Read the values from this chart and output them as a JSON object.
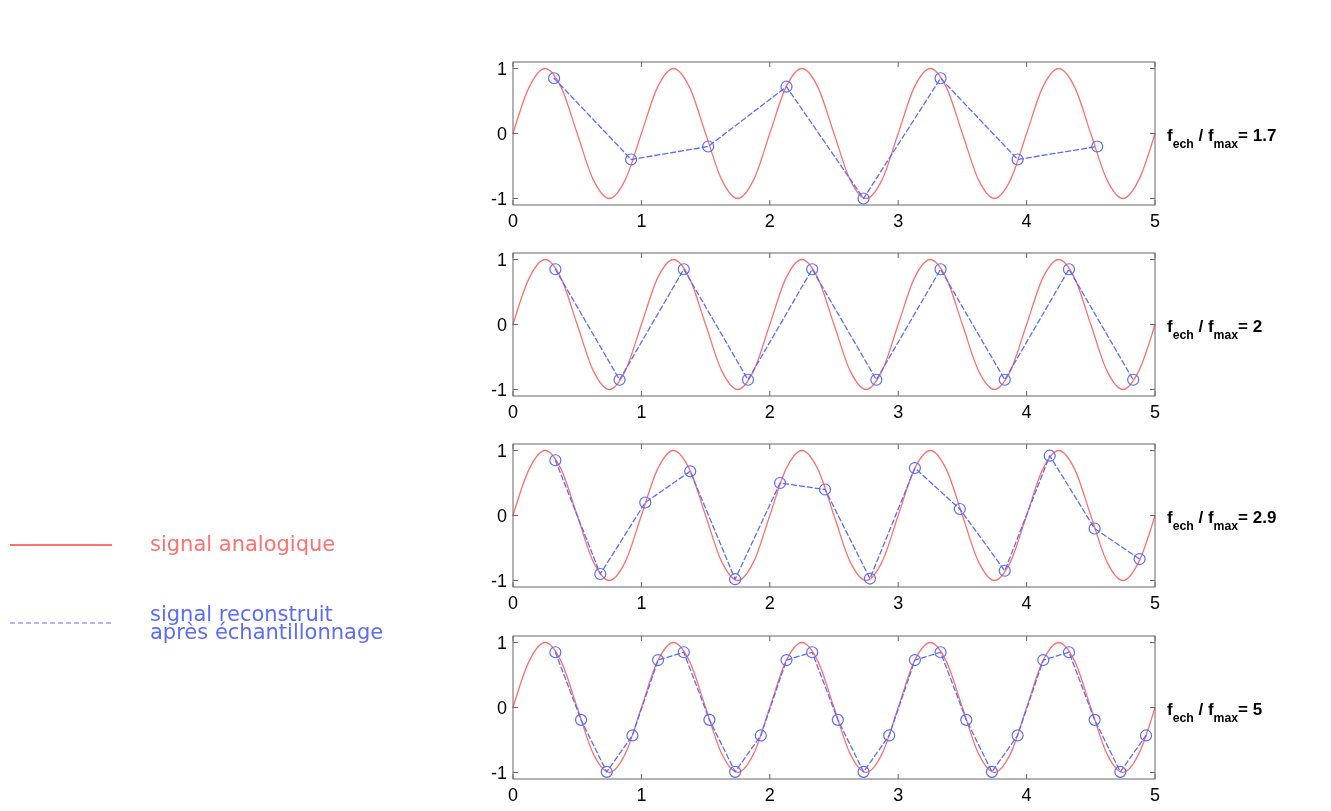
{
  "chart_data": [
    {
      "type": "line",
      "legend": "left",
      "xlim": [
        0,
        5
      ],
      "ylim": [
        -1.1,
        1.1
      ],
      "xticks": [
        0,
        1,
        2,
        3,
        4,
        5
      ],
      "yticks": [
        -1,
        0,
        1
      ],
      "annotations": [
        "f$_{ech}$ / f$_{max}$= 1.7"
      ],
      "series": [
        {
          "name": "signal analogique",
          "color": "#ff7070",
          "line_style": "solid",
          "marker": "none",
          "x": [
            0,
            0.125,
            0.25,
            0.375,
            0.5,
            0.625,
            0.75,
            0.875,
            1,
            1.125,
            1.25,
            1.375,
            1.5,
            1.625,
            1.75,
            1.875,
            2,
            2.125,
            2.25,
            2.375,
            2.5,
            2.625,
            2.75,
            2.875,
            3,
            3.125,
            3.25,
            3.375,
            3.5,
            3.625,
            3.75,
            3.875,
            4,
            4.125,
            4.25,
            4.375,
            4.5,
            4.625,
            4.75,
            4.875,
            5
          ],
          "values": [
            0,
            0.71,
            1,
            0.71,
            0,
            -0.71,
            -1,
            -0.71,
            0,
            0.71,
            1,
            0.71,
            0,
            -0.71,
            -1,
            -0.71,
            0,
            0.71,
            1,
            0.71,
            0,
            -0.71,
            -1,
            -0.71,
            0,
            0.71,
            1,
            0.71,
            0,
            -0.71,
            -1,
            -0.71,
            0,
            0.71,
            1,
            0.71,
            0,
            -0.71,
            -1,
            -0.71,
            0
          ]
        },
        {
          "name": "signal reconstruit après échantillonnage",
          "color": "#5a6cff",
          "line_style": "dashed",
          "marker": "circle",
          "x": [
            0.32,
            0.92,
            1.52,
            2.13,
            2.73,
            3.33,
            3.93,
            4.55
          ],
          "values": [
            0.85,
            -0.4,
            -0.2,
            0.72,
            -1,
            0.85,
            -0.4,
            -0.2
          ]
        }
      ]
    },
    {
      "type": "line",
      "xlim": [
        0,
        5
      ],
      "ylim": [
        -1.1,
        1.1
      ],
      "xticks": [
        0,
        1,
        2,
        3,
        4,
        5
      ],
      "yticks": [
        -1,
        0,
        1
      ],
      "annotations": [
        "f$_{ech}$ / f$_{max}$= 2"
      ],
      "series": [
        {
          "color": "#ff7070",
          "line_style": "solid",
          "marker": "none",
          "x": [
            0,
            0.125,
            0.25,
            0.375,
            0.5,
            0.625,
            0.75,
            0.875,
            1,
            1.125,
            1.25,
            1.375,
            1.5,
            1.625,
            1.75,
            1.875,
            2,
            2.125,
            2.25,
            2.375,
            2.5,
            2.625,
            2.75,
            2.875,
            3,
            3.125,
            3.25,
            3.375,
            3.5,
            3.625,
            3.75,
            3.875,
            4,
            4.125,
            4.25,
            4.375,
            4.5,
            4.625,
            4.75,
            4.875,
            5
          ],
          "values": [
            0,
            0.71,
            1,
            0.71,
            0,
            -0.71,
            -1,
            -0.71,
            0,
            0.71,
            1,
            0.71,
            0,
            -0.71,
            -1,
            -0.71,
            0,
            0.71,
            1,
            0.71,
            0,
            -0.71,
            -1,
            -0.71,
            0,
            0.71,
            1,
            0.71,
            0,
            -0.71,
            -1,
            -0.71,
            0,
            0.71,
            1,
            0.71,
            0,
            -0.71,
            -1,
            -0.71,
            0
          ]
        },
        {
          "color": "#5a6cff",
          "line_style": "dashed",
          "marker": "circle",
          "x": [
            0.33,
            0.83,
            1.33,
            1.83,
            2.33,
            2.83,
            3.33,
            3.83,
            4.33,
            4.83
          ],
          "values": [
            0.85,
            -0.85,
            0.85,
            -0.85,
            0.85,
            -0.85,
            0.85,
            -0.85,
            0.85,
            -0.85
          ]
        }
      ]
    },
    {
      "type": "line",
      "xlim": [
        0,
        5
      ],
      "ylim": [
        -1.1,
        1.1
      ],
      "xticks": [
        0,
        1,
        2,
        3,
        4,
        5
      ],
      "yticks": [
        -1,
        0,
        1
      ],
      "annotations": [
        "f$_{ech}$ / f$_{max}$= 2.9"
      ],
      "series": [
        {
          "color": "#ff7070",
          "line_style": "solid",
          "marker": "none",
          "x": [
            0,
            0.125,
            0.25,
            0.375,
            0.5,
            0.625,
            0.75,
            0.875,
            1,
            1.125,
            1.25,
            1.375,
            1.5,
            1.625,
            1.75,
            1.875,
            2,
            2.125,
            2.25,
            2.375,
            2.5,
            2.625,
            2.75,
            2.875,
            3,
            3.125,
            3.25,
            3.375,
            3.5,
            3.625,
            3.75,
            3.875,
            4,
            4.125,
            4.25,
            4.375,
            4.5,
            4.625,
            4.75,
            4.875,
            5
          ],
          "values": [
            0,
            0.71,
            1,
            0.71,
            0,
            -0.71,
            -1,
            -0.71,
            0,
            0.71,
            1,
            0.71,
            0,
            -0.71,
            -1,
            -0.71,
            0,
            0.71,
            1,
            0.71,
            0,
            -0.71,
            -1,
            -0.71,
            0,
            0.71,
            1,
            0.71,
            0,
            -0.71,
            -1,
            -0.71,
            0,
            0.71,
            1,
            0.71,
            0,
            -0.71,
            -1,
            -0.71,
            0
          ]
        },
        {
          "color": "#5a6cff",
          "line_style": "dashed",
          "marker": "circle",
          "x": [
            0.33,
            0.68,
            1.03,
            1.38,
            1.73,
            2.08,
            2.43,
            2.78,
            3.13,
            3.48,
            3.83,
            4.18,
            4.53,
            4.88
          ],
          "values": [
            0.85,
            -0.9,
            0.2,
            0.68,
            -0.98,
            0.5,
            0.4,
            -0.97,
            0.73,
            0.1,
            -0.85,
            0.92,
            -0.2,
            -0.67
          ]
        }
      ]
    },
    {
      "type": "line",
      "xlim": [
        0,
        5
      ],
      "ylim": [
        -1.1,
        1.1
      ],
      "xticks": [
        0,
        1,
        2,
        3,
        4,
        5
      ],
      "yticks": [
        -1,
        0,
        1
      ],
      "annotations": [
        "f$_{ech}$ / f$_{max}$= 5"
      ],
      "series": [
        {
          "color": "#ff7070",
          "line_style": "solid",
          "marker": "none",
          "x": [
            0,
            0.125,
            0.25,
            0.375,
            0.5,
            0.625,
            0.75,
            0.875,
            1,
            1.125,
            1.25,
            1.375,
            1.5,
            1.625,
            1.75,
            1.875,
            2,
            2.125,
            2.25,
            2.375,
            2.5,
            2.625,
            2.75,
            2.875,
            3,
            3.125,
            3.25,
            3.375,
            3.5,
            3.625,
            3.75,
            3.875,
            4,
            4.125,
            4.25,
            4.375,
            4.5,
            4.625,
            4.75,
            4.875,
            5
          ],
          "values": [
            0,
            0.71,
            1,
            0.71,
            0,
            -0.71,
            -1,
            -0.71,
            0,
            0.71,
            1,
            0.71,
            0,
            -0.71,
            -1,
            -0.71,
            0,
            0.71,
            1,
            0.71,
            0,
            -0.71,
            -1,
            -0.71,
            0,
            0.71,
            1,
            0.71,
            0,
            -0.71,
            -1,
            -0.71,
            0,
            0.71,
            1,
            0.71,
            0,
            -0.71,
            -1,
            -0.71,
            0
          ]
        },
        {
          "color": "#5a6cff",
          "line_style": "dashed",
          "marker": "circle",
          "x": [
            0.33,
            0.53,
            0.73,
            0.93,
            1.13,
            1.33,
            1.53,
            1.73,
            1.93,
            2.13,
            2.33,
            2.53,
            2.73,
            2.93,
            3.13,
            3.33,
            3.53,
            3.73,
            3.93,
            4.13,
            4.33,
            4.53,
            4.73,
            4.93
          ],
          "values": [
            0.85,
            -0.19,
            -0.99,
            -0.43,
            0.73,
            0.85,
            -0.19,
            -0.99,
            -0.43,
            0.73,
            0.85,
            -0.19,
            -0.99,
            -0.43,
            0.73,
            0.85,
            -0.19,
            -0.99,
            -0.43,
            0.73,
            0.85,
            -0.19,
            -0.99,
            -0.43
          ]
        }
      ]
    }
  ]
}
